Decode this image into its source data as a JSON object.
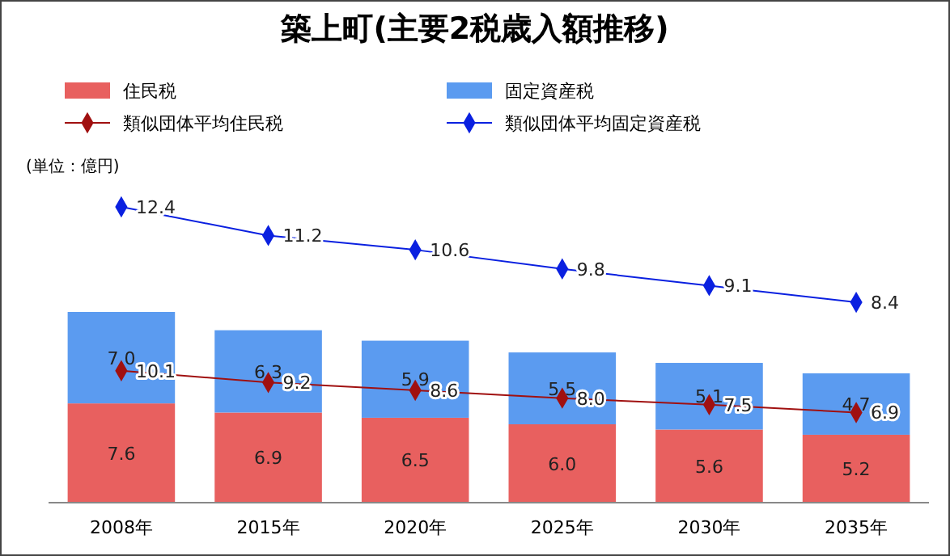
{
  "chart_data": {
    "type": "bar",
    "title": "築上町(主要2税歳入額推移)",
    "annotations": [
      "(単位：億円)"
    ],
    "categories": [
      "2008年",
      "2015年",
      "2020年",
      "2025年",
      "2030年",
      "2035年"
    ],
    "stacked": true,
    "legend": "top",
    "grid": false,
    "tick_labels": "x",
    "marker": "diamond",
    "series": [
      {
        "name": "住民税",
        "color": "#e8605f",
        "values": [
          7.6,
          6.9,
          6.5,
          6.0,
          5.6,
          5.2
        ],
        "value_labels": [
          "7.6",
          "6.9",
          "6.5",
          "6.0",
          "5.6",
          "5.2"
        ]
      },
      {
        "name": "固定資産税",
        "color": "#5b9bf0",
        "values": [
          7.0,
          6.3,
          5.9,
          5.5,
          5.1,
          4.7
        ],
        "value_labels": [
          "7.0",
          "6.3",
          "5.9",
          "5.5",
          "5.1",
          "4.7"
        ]
      },
      {
        "name": "類似団体平均住民税",
        "type": "line",
        "color": "#a01010",
        "values": [
          10.1,
          9.2,
          8.6,
          8.0,
          7.5,
          6.9
        ],
        "value_labels": [
          "10.1",
          "9.2",
          "8.6",
          "8.0",
          "7.5",
          "6.9"
        ]
      },
      {
        "name": "類似団体平均固定資産税",
        "type": "line",
        "axis": "y2",
        "color": "#0a20e0",
        "values": [
          12.4,
          11.2,
          10.6,
          9.8,
          9.1,
          8.4
        ],
        "value_labels": [
          "12.4",
          "11.2",
          "10.6",
          "9.8",
          "9.1",
          "8.4"
        ]
      }
    ]
  }
}
